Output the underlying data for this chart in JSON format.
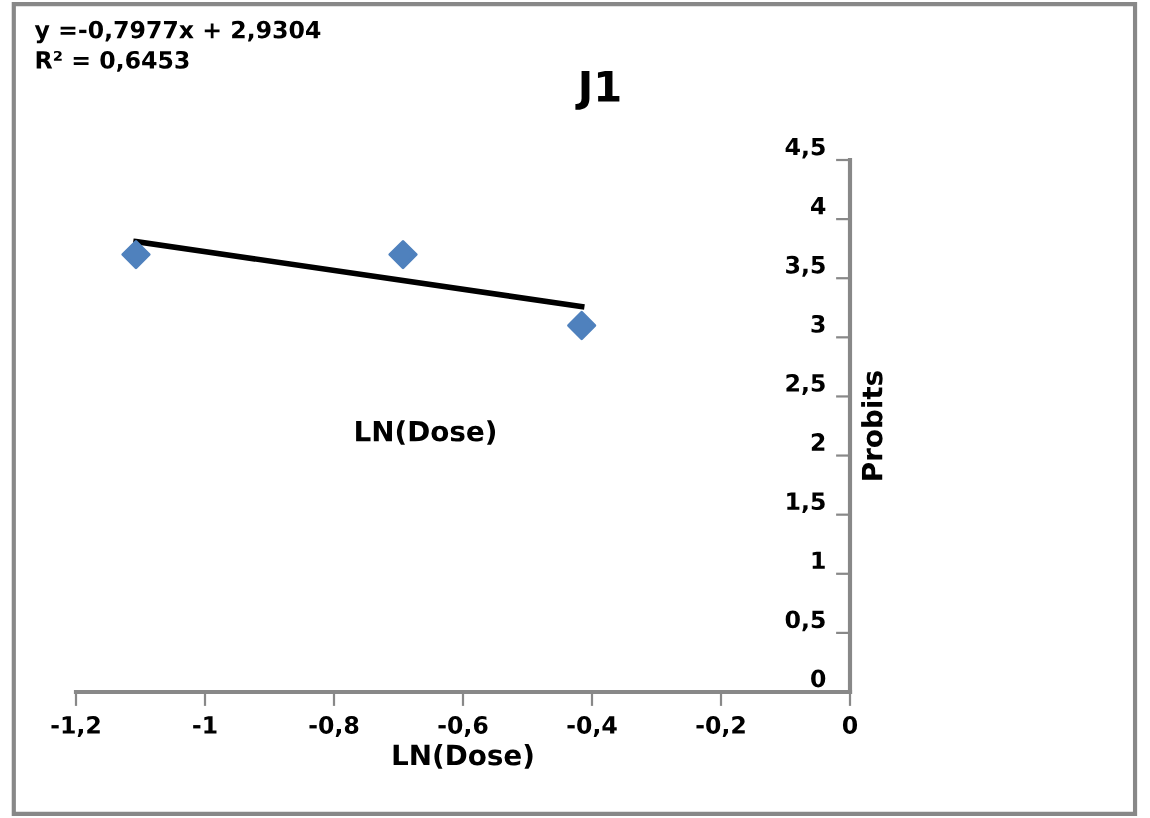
{
  "chart_data": {
    "type": "scatter",
    "title": "J1",
    "xlabel": "LN(Dose)",
    "ylabel": "Probits",
    "series": [
      {
        "color": "#4f81bd",
        "marker": "diamond",
        "x": [
          -1.107,
          -0.693,
          -0.416
        ],
        "values": [
          3.7,
          3.7,
          3.1
        ]
      },
      {
        "type": "line",
        "color": "#000000",
        "marker": "none",
        "line_style": "solid",
        "x": [
          -1.107,
          -0.416
        ],
        "values": [
          3.81,
          3.26
        ]
      }
    ],
    "annotations": [
      "y =-0,7977x + 2,9304\nR² = 0,6453",
      "LN(Dose)"
    ],
    "xlim": [
      -1.2,
      0
    ],
    "xticks": [
      {
        "value": -1.2,
        "label": "-1,2"
      },
      {
        "value": -1,
        "label": "-1"
      },
      {
        "value": -0.8,
        "label": "-0,8"
      },
      {
        "value": -0.6,
        "label": "-0,6"
      },
      {
        "value": -0.4,
        "label": "-0,4"
      },
      {
        "value": -0.2,
        "label": "-0,2"
      },
      0
    ],
    "ylim": [
      0,
      4.5
    ],
    "yticks": [
      0,
      {
        "value": 0.5,
        "label": "0,5"
      },
      1,
      {
        "value": 1.5,
        "label": "1,5"
      },
      2,
      {
        "value": 2.5,
        "label": "2,5"
      },
      3,
      {
        "value": 3.5,
        "label": "3,5"
      },
      4,
      {
        "value": 4.5,
        "label": "4,5"
      }
    ],
    "grid": false
  }
}
